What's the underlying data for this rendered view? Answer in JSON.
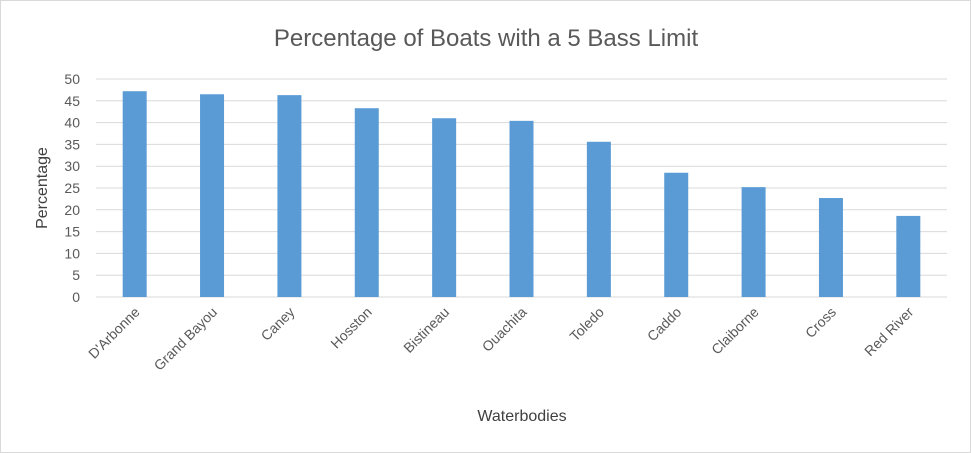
{
  "chart_data": {
    "type": "bar",
    "title": "Percentage of Boats with a 5 Bass Limit",
    "xlabel": "Waterbodies",
    "ylabel": "Percentage",
    "ylim": [
      0,
      50
    ],
    "yticks": [
      0,
      5,
      10,
      15,
      20,
      25,
      30,
      35,
      40,
      45,
      50
    ],
    "grid": true,
    "categories": [
      "D'Arbonne",
      "Grand Bayou",
      "Caney",
      "Hosston",
      "Bistineau",
      "Ouachita",
      "Toledo",
      "Caddo",
      "Claiborne",
      "Cross",
      "Red River"
    ],
    "values": [
      47.2,
      46.5,
      46.3,
      43.3,
      41.0,
      40.4,
      35.6,
      28.5,
      25.2,
      22.7,
      18.6
    ],
    "colors": {
      "bar": "#5b9bd5",
      "grid": "#d9d9d9"
    }
  }
}
